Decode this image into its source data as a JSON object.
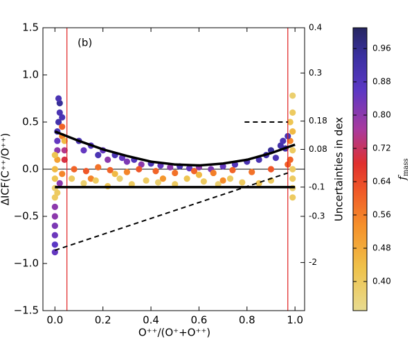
{
  "chart_data": {
    "type": "scatter",
    "panel_label": "(b)",
    "xlabel": "O⁺⁺/(O⁺+O⁺⁺)",
    "ylabel": "ΔICF(C⁺⁺/O⁺⁺)",
    "y2label": "Uncertainties in dex",
    "colorbar_label": {
      "main": "f",
      "sub": "mass"
    },
    "xlim": [
      -0.05,
      1.04
    ],
    "ylim": [
      -1.5,
      1.5
    ],
    "xticks": [
      {
        "value": 0,
        "label": "0.0"
      },
      0.2,
      0.4,
      0.6,
      0.8,
      {
        "value": 1,
        "label": "1.0"
      }
    ],
    "yticks": [
      {
        "value": -1.5,
        "label": "−1.5"
      },
      {
        "value": -1,
        "label": "−1.0"
      },
      {
        "value": -0.5,
        "label": "−0.5"
      },
      {
        "value": 0,
        "label": "0.0"
      },
      0.5,
      {
        "value": 1,
        "label": "1.0"
      },
      1.5
    ],
    "y2_labels": [
      {
        "text": "0.4",
        "y": 1.5
      },
      {
        "text": "0.3",
        "y": 1.02
      },
      {
        "text": "0.18",
        "y": 0.51
      },
      {
        "text": "0.08",
        "y": 0.21
      },
      {
        "text": "-0.1",
        "y": -0.19
      },
      {
        "text": "-0.3",
        "y": -0.5
      },
      {
        "text": "-2",
        "y": -0.99
      }
    ],
    "clim": [
      0.33,
      1.01
    ],
    "cticks": [
      {
        "value": 0.4,
        "label": "0.40"
      },
      0.48,
      0.56,
      0.64,
      0.72,
      {
        "value": 0.8,
        "label": "0.80"
      },
      0.88,
      0.96
    ],
    "vlines": [
      {
        "x": 0.05,
        "color": "#e02020"
      },
      {
        "x": 0.97,
        "color": "#e02020"
      }
    ],
    "zero_line": 0,
    "curve": {
      "x": [
        0,
        0.1,
        0.2,
        0.3,
        0.4,
        0.5,
        0.6,
        0.7,
        0.8,
        0.9,
        1.0
      ],
      "y": [
        0.4,
        0.3,
        0.21,
        0.14,
        0.08,
        0.05,
        0.04,
        0.06,
        0.1,
        0.17,
        0.26
      ]
    },
    "hline": {
      "x": [
        0,
        1
      ],
      "y": [
        -0.19,
        -0.19
      ]
    },
    "dashed": {
      "x": [
        0,
        0.97
      ],
      "y": [
        -0.86,
        -0.04
      ]
    },
    "dashed_short": {
      "x": [
        0.79,
        0.97
      ],
      "y": [
        0.5,
        0.5
      ]
    },
    "points": [
      [
        0.0,
        -0.88,
        0.85
      ],
      [
        0.0,
        -0.8,
        0.86
      ],
      [
        0.0,
        -0.7,
        0.84
      ],
      [
        0.0,
        -0.6,
        0.82
      ],
      [
        0.0,
        -0.5,
        0.8
      ],
      [
        0.0,
        -0.4,
        0.8
      ],
      [
        0.0,
        -0.3,
        0.4
      ],
      [
        0.0,
        -0.2,
        0.38
      ],
      [
        0.0,
        -0.1,
        0.42
      ],
      [
        0.0,
        0.0,
        0.45
      ],
      [
        0.01,
        0.1,
        0.5
      ],
      [
        0.01,
        0.2,
        0.8
      ],
      [
        0.01,
        0.3,
        0.85
      ],
      [
        0.01,
        0.4,
        0.9
      ],
      [
        0.015,
        0.5,
        0.92
      ],
      [
        0.02,
        0.6,
        0.9
      ],
      [
        0.02,
        0.7,
        0.95
      ],
      [
        0.015,
        0.75,
        0.9
      ],
      [
        0.03,
        0.45,
        0.6
      ],
      [
        0.03,
        0.35,
        0.55
      ],
      [
        0.04,
        0.3,
        0.45
      ],
      [
        0.02,
        -0.15,
        0.8
      ],
      [
        0.03,
        -0.05,
        0.55
      ],
      [
        0.04,
        0.1,
        0.7
      ],
      [
        0.04,
        0.2,
        0.75
      ],
      [
        0.03,
        0.55,
        0.9
      ],
      [
        0.01,
        -0.25,
        0.4
      ],
      [
        0.0,
        0.15,
        0.42
      ],
      [
        0.1,
        0.3,
        0.9
      ],
      [
        0.12,
        0.2,
        0.85
      ],
      [
        0.15,
        0.25,
        0.88
      ],
      [
        0.18,
        0.15,
        0.9
      ],
      [
        0.2,
        0.2,
        0.85
      ],
      [
        0.22,
        0.1,
        0.8
      ],
      [
        0.25,
        0.15,
        0.9
      ],
      [
        0.28,
        0.12,
        0.85
      ],
      [
        0.3,
        0.08,
        0.82
      ],
      [
        0.33,
        0.1,
        0.88
      ],
      [
        0.36,
        0.05,
        0.8
      ],
      [
        0.4,
        0.06,
        0.9
      ],
      [
        0.44,
        0.04,
        0.85
      ],
      [
        0.48,
        0.02,
        0.8
      ],
      [
        0.52,
        0.03,
        0.9
      ],
      [
        0.56,
        0.01,
        0.85
      ],
      [
        0.6,
        0.02,
        0.8
      ],
      [
        0.65,
        0.0,
        0.82
      ],
      [
        0.7,
        0.03,
        0.85
      ],
      [
        0.75,
        0.05,
        0.88
      ],
      [
        0.8,
        0.08,
        0.9
      ],
      [
        0.85,
        0.1,
        0.9
      ],
      [
        0.88,
        0.15,
        0.92
      ],
      [
        0.9,
        0.2,
        0.95
      ],
      [
        0.92,
        0.12,
        0.9
      ],
      [
        0.94,
        0.25,
        0.92
      ],
      [
        0.95,
        0.3,
        0.9
      ],
      [
        0.08,
        0.0,
        0.6
      ],
      [
        0.13,
        -0.02,
        0.62
      ],
      [
        0.18,
        0.02,
        0.58
      ],
      [
        0.23,
        -0.01,
        0.6
      ],
      [
        0.3,
        -0.03,
        0.55
      ],
      [
        0.35,
        0.0,
        0.62
      ],
      [
        0.42,
        -0.02,
        0.6
      ],
      [
        0.5,
        -0.04,
        0.58
      ],
      [
        0.58,
        -0.02,
        0.6
      ],
      [
        0.66,
        -0.04,
        0.56
      ],
      [
        0.74,
        -0.01,
        0.6
      ],
      [
        0.82,
        -0.03,
        0.58
      ],
      [
        0.9,
        0.0,
        0.62
      ],
      [
        0.15,
        -0.1,
        0.55
      ],
      [
        0.45,
        -0.1,
        0.52
      ],
      [
        0.7,
        -0.12,
        0.54
      ],
      [
        0.07,
        -0.1,
        0.4
      ],
      [
        0.12,
        -0.15,
        0.38
      ],
      [
        0.17,
        -0.12,
        0.4
      ],
      [
        0.22,
        -0.18,
        0.42
      ],
      [
        0.27,
        -0.1,
        0.38
      ],
      [
        0.32,
        -0.16,
        0.4
      ],
      [
        0.38,
        -0.12,
        0.4
      ],
      [
        0.43,
        -0.14,
        0.38
      ],
      [
        0.5,
        -0.16,
        0.4
      ],
      [
        0.55,
        -0.1,
        0.42
      ],
      [
        0.62,
        -0.13,
        0.4
      ],
      [
        0.68,
        -0.16,
        0.38
      ],
      [
        0.73,
        -0.1,
        0.4
      ],
      [
        0.78,
        -0.14,
        0.4
      ],
      [
        0.85,
        -0.15,
        0.42
      ],
      [
        0.9,
        -0.12,
        0.4
      ],
      [
        0.25,
        -0.05,
        0.45
      ],
      [
        0.6,
        -0.06,
        0.45
      ],
      [
        0.99,
        0.78,
        0.38
      ],
      [
        0.99,
        0.6,
        0.4
      ],
      [
        0.98,
        0.5,
        0.42
      ],
      [
        0.99,
        0.4,
        0.45
      ],
      [
        0.98,
        0.3,
        0.55
      ],
      [
        0.99,
        0.2,
        0.4
      ],
      [
        0.98,
        0.1,
        0.6
      ],
      [
        0.99,
        0.0,
        0.4
      ],
      [
        0.99,
        -0.1,
        0.4
      ],
      [
        0.99,
        -0.2,
        0.38
      ],
      [
        0.99,
        -0.3,
        0.4
      ],
      [
        0.97,
        0.35,
        0.9
      ],
      [
        0.96,
        0.22,
        0.92
      ],
      [
        0.97,
        0.05,
        0.6
      ]
    ]
  }
}
